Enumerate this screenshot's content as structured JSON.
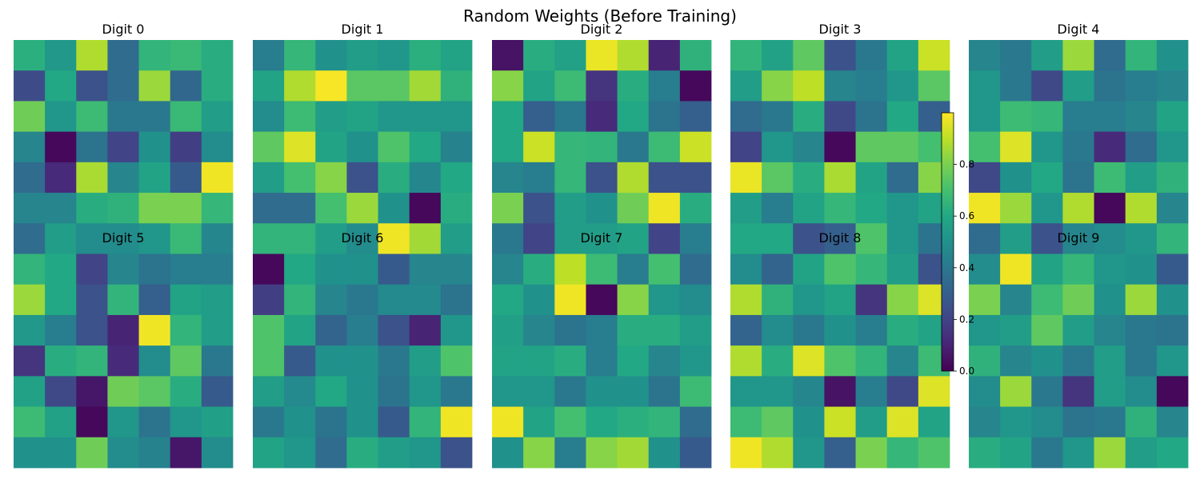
{
  "chart_data": {
    "type": "heatmap",
    "title": "Random Weights (Before Training)",
    "colormap": "viridis",
    "vmin": 0.0,
    "vmax": 1.0,
    "colorbar": {
      "ticks": [
        0.0,
        0.2,
        0.4,
        0.6,
        0.8
      ],
      "tick_labels": [
        "0.0",
        "0.2",
        "0.4",
        "0.6",
        "0.8"
      ]
    },
    "panels": [
      {
        "title": "Digit 0",
        "values": [
          [
            0.63,
            0.53,
            0.88,
            0.35,
            0.65,
            0.67,
            0.62
          ],
          [
            0.23,
            0.6,
            0.25,
            0.35,
            0.85,
            0.33,
            0.62
          ],
          [
            0.78,
            0.52,
            0.68,
            0.4,
            0.4,
            0.67,
            0.55
          ],
          [
            0.45,
            0.02,
            0.38,
            0.2,
            0.5,
            0.18,
            0.48
          ],
          [
            0.35,
            0.12,
            0.87,
            0.45,
            0.58,
            0.28,
            0.98
          ],
          [
            0.45,
            0.45,
            0.62,
            0.64,
            0.8,
            0.8,
            0.66
          ],
          [
            0.35,
            0.55,
            0.48,
            0.48,
            0.52,
            0.67,
            0.46
          ],
          [
            0.65,
            0.6,
            0.2,
            0.45,
            0.38,
            0.42,
            0.42
          ],
          [
            0.85,
            0.6,
            0.25,
            0.65,
            0.3,
            0.58,
            0.55
          ],
          [
            0.53,
            0.42,
            0.25,
            0.1,
            0.98,
            0.65,
            0.55
          ],
          [
            0.15,
            0.62,
            0.65,
            0.12,
            0.48,
            0.75,
            0.4
          ],
          [
            0.57,
            0.22,
            0.06,
            0.78,
            0.74,
            0.62,
            0.28
          ],
          [
            0.68,
            0.57,
            0.02,
            0.52,
            0.38,
            0.52,
            0.56
          ],
          [
            0.5,
            0.5,
            0.78,
            0.48,
            0.44,
            0.06,
            0.48
          ]
        ]
      },
      {
        "title": "Digit 1",
        "values": [
          [
            0.42,
            0.66,
            0.5,
            0.55,
            0.52,
            0.63,
            0.58
          ],
          [
            0.58,
            0.88,
            0.99,
            0.74,
            0.74,
            0.86,
            0.64
          ],
          [
            0.48,
            0.68,
            0.55,
            0.58,
            0.52,
            0.52,
            0.52
          ],
          [
            0.75,
            0.95,
            0.58,
            0.5,
            0.72,
            0.6,
            0.44
          ],
          [
            0.55,
            0.7,
            0.82,
            0.25,
            0.62,
            0.46,
            0.6
          ],
          [
            0.35,
            0.35,
            0.7,
            0.85,
            0.5,
            0.02,
            0.62
          ],
          [
            0.65,
            0.65,
            0.55,
            0.48,
            0.98,
            0.86,
            0.55
          ],
          [
            0.02,
            0.6,
            0.5,
            0.5,
            0.28,
            0.45,
            0.45
          ],
          [
            0.18,
            0.65,
            0.45,
            0.4,
            0.47,
            0.47,
            0.38
          ],
          [
            0.72,
            0.58,
            0.32,
            0.42,
            0.25,
            0.1,
            0.52
          ],
          [
            0.72,
            0.28,
            0.5,
            0.5,
            0.4,
            0.55,
            0.72
          ],
          [
            0.55,
            0.47,
            0.6,
            0.5,
            0.38,
            0.52,
            0.4
          ],
          [
            0.4,
            0.5,
            0.38,
            0.5,
            0.28,
            0.65,
            0.98
          ],
          [
            0.58,
            0.52,
            0.35,
            0.62,
            0.55,
            0.52,
            0.25
          ]
        ]
      },
      {
        "title": "Digit 2",
        "values": [
          [
            0.05,
            0.62,
            0.57,
            0.97,
            0.88,
            0.1,
            0.64
          ],
          [
            0.82,
            0.58,
            0.68,
            0.15,
            0.62,
            0.42,
            0.02
          ],
          [
            0.6,
            0.3,
            0.4,
            0.12,
            0.6,
            0.38,
            0.3
          ],
          [
            0.6,
            0.92,
            0.66,
            0.65,
            0.4,
            0.68,
            0.92
          ],
          [
            0.45,
            0.42,
            0.66,
            0.25,
            0.88,
            0.25,
            0.25
          ],
          [
            0.8,
            0.25,
            0.55,
            0.5,
            0.78,
            0.98,
            0.62
          ],
          [
            0.4,
            0.2,
            0.55,
            0.55,
            0.58,
            0.2,
            0.42
          ],
          [
            0.45,
            0.62,
            0.9,
            0.68,
            0.42,
            0.7,
            0.35
          ],
          [
            0.6,
            0.5,
            0.98,
            0.02,
            0.82,
            0.52,
            0.48
          ],
          [
            0.56,
            0.45,
            0.38,
            0.42,
            0.62,
            0.62,
            0.55
          ],
          [
            0.58,
            0.58,
            0.62,
            0.42,
            0.6,
            0.45,
            0.52
          ],
          [
            0.52,
            0.52,
            0.4,
            0.5,
            0.5,
            0.38,
            0.68
          ],
          [
            0.98,
            0.58,
            0.7,
            0.6,
            0.63,
            0.65,
            0.35
          ],
          [
            0.5,
            0.82,
            0.42,
            0.82,
            0.86,
            0.5,
            0.28
          ]
        ]
      },
      {
        "title": "Digit 3",
        "values": [
          [
            0.65,
            0.57,
            0.75,
            0.25,
            0.4,
            0.58,
            0.92
          ],
          [
            0.55,
            0.82,
            0.9,
            0.45,
            0.42,
            0.52,
            0.74
          ],
          [
            0.35,
            0.4,
            0.62,
            0.22,
            0.38,
            0.6,
            0.3
          ],
          [
            0.2,
            0.52,
            0.45,
            0.02,
            0.75,
            0.75,
            0.7
          ],
          [
            0.97,
            0.74,
            0.62,
            0.87,
            0.58,
            0.35,
            0.82
          ],
          [
            0.55,
            0.42,
            0.58,
            0.66,
            0.6,
            0.52,
            0.58
          ],
          [
            0.6,
            0.6,
            0.25,
            0.3,
            0.72,
            0.52,
            0.38
          ],
          [
            0.48,
            0.32,
            0.58,
            0.72,
            0.66,
            0.55,
            0.25
          ],
          [
            0.88,
            0.64,
            0.52,
            0.58,
            0.15,
            0.82,
            0.95
          ],
          [
            0.32,
            0.48,
            0.4,
            0.5,
            0.42,
            0.62,
            0.58
          ],
          [
            0.88,
            0.62,
            0.95,
            0.72,
            0.65,
            0.45,
            0.68
          ],
          [
            0.52,
            0.52,
            0.46,
            0.05,
            0.42,
            0.22,
            0.95
          ],
          [
            0.68,
            0.75,
            0.5,
            0.92,
            0.55,
            0.95,
            0.58
          ],
          [
            0.98,
            0.88,
            0.52,
            0.3,
            0.8,
            0.66,
            0.72
          ]
        ]
      },
      {
        "title": "Digit 4",
        "values": [
          [
            0.45,
            0.4,
            0.55,
            0.85,
            0.35,
            0.65,
            0.5
          ],
          [
            0.52,
            0.4,
            0.22,
            0.55,
            0.38,
            0.42,
            0.45
          ],
          [
            0.52,
            0.68,
            0.66,
            0.42,
            0.42,
            0.45,
            0.58
          ],
          [
            0.7,
            0.95,
            0.52,
            0.4,
            0.12,
            0.35,
            0.52
          ],
          [
            0.22,
            0.5,
            0.6,
            0.38,
            0.68,
            0.55,
            0.64
          ],
          [
            0.98,
            0.85,
            0.52,
            0.88,
            0.02,
            0.88,
            0.45
          ],
          [
            0.35,
            0.55,
            0.25,
            0.45,
            0.48,
            0.52,
            0.65
          ],
          [
            0.48,
            0.98,
            0.58,
            0.66,
            0.52,
            0.5,
            0.28
          ],
          [
            0.8,
            0.45,
            0.68,
            0.78,
            0.5,
            0.85,
            0.5
          ],
          [
            0.52,
            0.55,
            0.75,
            0.55,
            0.45,
            0.4,
            0.38
          ],
          [
            0.64,
            0.45,
            0.5,
            0.4,
            0.55,
            0.4,
            0.52
          ],
          [
            0.48,
            0.85,
            0.4,
            0.15,
            0.55,
            0.48,
            0.02
          ],
          [
            0.45,
            0.52,
            0.48,
            0.38,
            0.4,
            0.64,
            0.45
          ],
          [
            0.62,
            0.58,
            0.4,
            0.52,
            0.85,
            0.55,
            0.6
          ]
        ]
      }
    ],
    "overlay_titles": [
      "Digit 5",
      "Digit 6",
      "Digit 7",
      "Digit 8",
      "Digit 9"
    ]
  }
}
